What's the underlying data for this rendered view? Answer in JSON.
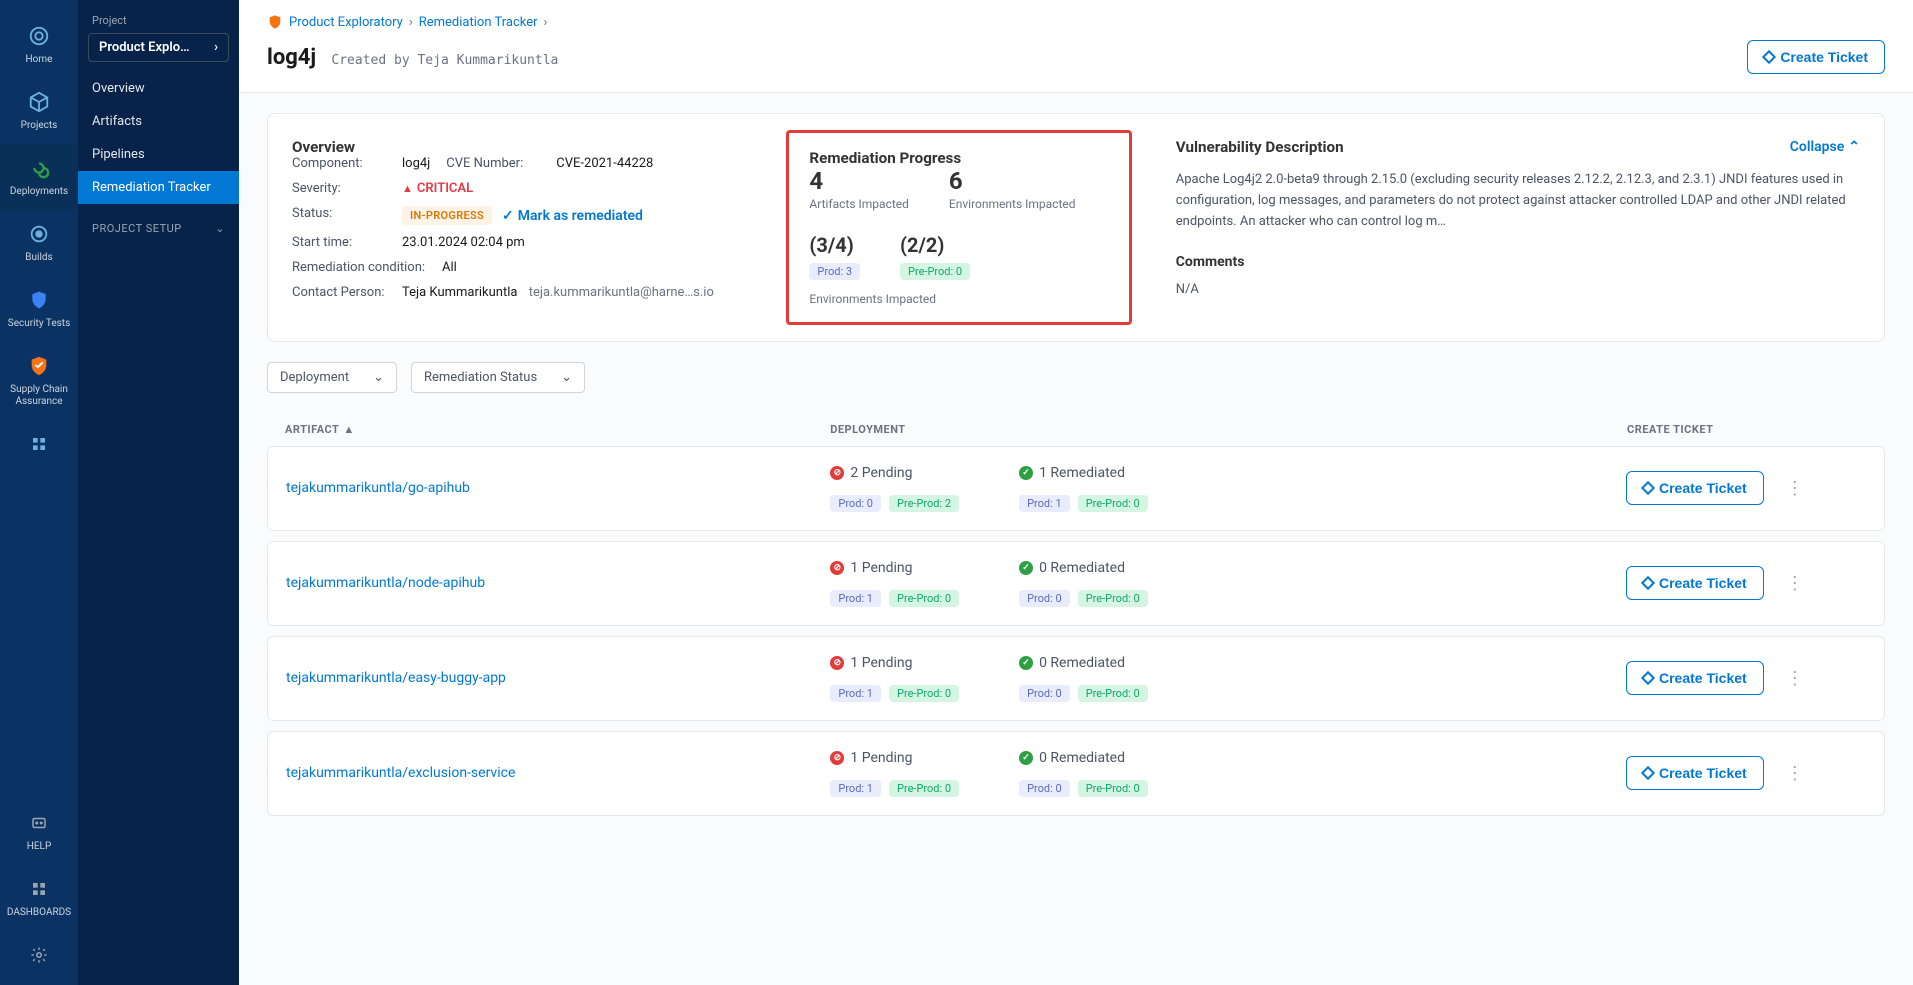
{
  "rail": {
    "items": [
      {
        "label": "Home",
        "icon": "home"
      },
      {
        "label": "Projects",
        "icon": "cube"
      },
      {
        "label": "Deployments",
        "icon": "loop",
        "color": "#2ea043"
      },
      {
        "label": "Builds",
        "icon": "wrench"
      },
      {
        "label": "Security Tests",
        "icon": "shield-blue"
      },
      {
        "label": "Supply Chain Assurance",
        "icon": "shield-orange",
        "color": "#f97316"
      }
    ],
    "bottom": [
      {
        "label": "HELP",
        "icon": "help"
      },
      {
        "label": "DASHBOARDS",
        "icon": "grid4"
      }
    ],
    "gear": "gear"
  },
  "sidebar": {
    "project_label": "Project",
    "project_name": "Product Explo…",
    "items": [
      {
        "label": "Overview"
      },
      {
        "label": "Artifacts"
      },
      {
        "label": "Pipelines"
      },
      {
        "label": "Remediation Tracker",
        "active": true
      }
    ],
    "setup_label": "PROJECT SETUP"
  },
  "breadcrumb": {
    "items": [
      "Product Exploratory",
      "Remediation Tracker"
    ]
  },
  "header": {
    "title": "log4j",
    "subtitle": "Created by Teja Kummarikuntla",
    "create_ticket": "Create Ticket"
  },
  "overview": {
    "title": "Overview",
    "component_k": "Component:",
    "component_v": "log4j",
    "cve_k": "CVE Number:",
    "cve_v": "CVE-2021-44228",
    "severity_k": "Severity:",
    "severity_v": "CRITICAL",
    "status_k": "Status:",
    "status_v": "IN-PROGRESS",
    "mark_action": "Mark as remediated",
    "start_k": "Start time:",
    "start_v": "23.01.2024 02:04 pm",
    "remed_k": "Remediation condition:",
    "remed_v": "All",
    "contact_k": "Contact Person:",
    "contact_name": "Teja Kummarikuntla",
    "contact_email": "teja.kummarikuntla@harne…s.io"
  },
  "progress": {
    "title": "Remediation Progress",
    "artifacts_n": "4",
    "artifacts_lbl": "Artifacts Impacted",
    "envs_n": "6",
    "envs_lbl": "Environments Impacted",
    "ratio1": "(3/4)",
    "prod_chip": "Prod: 3",
    "ratio2": "(2/2)",
    "preprod_chip": "Pre-Prod: 0",
    "env_imp": "Environments Impacted"
  },
  "desc": {
    "title": "Vulnerability Description",
    "collapse": "Collapse",
    "text": "Apache Log4j2 2.0-beta9 through 2.15.0 (excluding security releases 2.12.2, 2.12.3, and 2.3.1) JNDI features used in configuration, log messages, and parameters do not protect against attacker controlled LDAP and other JNDI related endpoints. An attacker who can control log m…",
    "comments_h": "Comments",
    "comments_v": "N/A"
  },
  "filters": {
    "deployment": "Deployment",
    "remediation": "Remediation Status"
  },
  "table": {
    "col_artifact": "ARTIFACT",
    "col_deployment": "DEPLOYMENT",
    "col_ticket": "CREATE TICKET",
    "create_ticket": "Create Ticket",
    "rows": [
      {
        "artifact": "tejakummarikuntla/go-apihub",
        "pending": "2 Pending",
        "pending_prod": "Prod: 0",
        "pending_preprod": "Pre-Prod: 2",
        "remediated": "1 Remediated",
        "rem_prod": "Prod: 1",
        "rem_preprod": "Pre-Prod: 0"
      },
      {
        "artifact": "tejakummarikuntla/node-apihub",
        "pending": "1 Pending",
        "pending_prod": "Prod: 1",
        "pending_preprod": "Pre-Prod: 0",
        "remediated": "0 Remediated",
        "rem_prod": "Prod: 0",
        "rem_preprod": "Pre-Prod: 0"
      },
      {
        "artifact": "tejakummarikuntla/easy-buggy-app",
        "pending": "1 Pending",
        "pending_prod": "Prod: 1",
        "pending_preprod": "Pre-Prod: 0",
        "remediated": "0 Remediated",
        "rem_prod": "Prod: 0",
        "rem_preprod": "Pre-Prod: 0"
      },
      {
        "artifact": "tejakummarikuntla/exclusion-service",
        "pending": "1 Pending",
        "pending_prod": "Prod: 1",
        "pending_preprod": "Pre-Prod: 0",
        "remediated": "0 Remediated",
        "rem_prod": "Prod: 0",
        "rem_preprod": "Pre-Prod: 0"
      }
    ]
  }
}
